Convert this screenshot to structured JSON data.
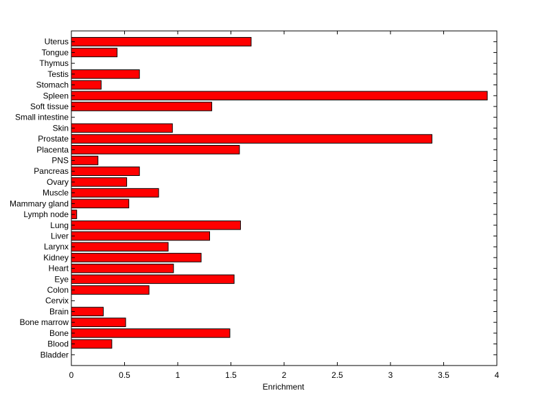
{
  "chart_data": {
    "type": "bar",
    "orientation": "horizontal",
    "categories": [
      "Uterus",
      "Tongue",
      "Thymus",
      "Testis",
      "Stomach",
      "Spleen",
      "Soft tissue",
      "Small intestine",
      "Skin",
      "Prostate",
      "Placenta",
      "PNS",
      "Pancreas",
      "Ovary",
      "Muscle",
      "Mammary gland",
      "Lymph node",
      "Lung",
      "Liver",
      "Larynx",
      "Kidney",
      "Heart",
      "Eye",
      "Colon",
      "Cervix",
      "Brain",
      "Bone marrow",
      "Bone",
      "Blood",
      "Bladder"
    ],
    "values": [
      1.69,
      0.43,
      0,
      0.64,
      0.28,
      3.91,
      1.32,
      0,
      0.95,
      3.39,
      1.58,
      0.25,
      0.64,
      0.52,
      0.82,
      0.54,
      0.05,
      1.59,
      1.3,
      0.91,
      1.22,
      0.96,
      1.53,
      0.73,
      0,
      0.3,
      0.51,
      1.49,
      0.38,
      0
    ],
    "xlabel": "Enrichment",
    "ylabel": "",
    "title": "",
    "xlim": [
      0,
      4
    ],
    "xticks": [
      "0",
      "0.5",
      "1",
      "1.5",
      "2",
      "2.5",
      "3",
      "3.5",
      "4"
    ],
    "grid": false,
    "bar_color": "#ff0000",
    "edge_color": "#000000"
  }
}
